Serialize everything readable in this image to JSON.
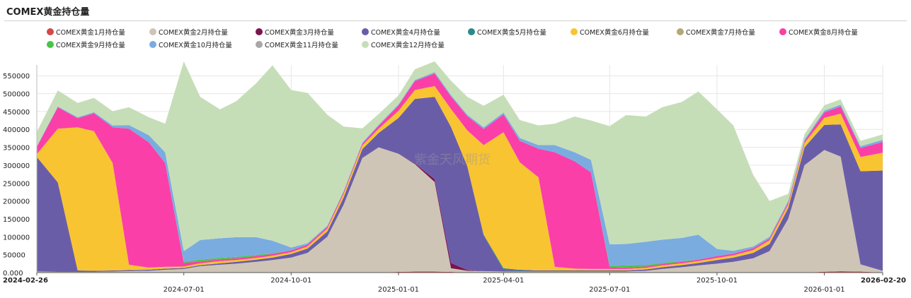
{
  "chart_data": {
    "type": "area",
    "stacked": true,
    "title": "COMEX黄金持仓量",
    "watermark": "紫金天风期货",
    "x": [
      "2024-02-26",
      "2024-03-15",
      "2024-04-01",
      "2024-04-15",
      "2024-05-01",
      "2024-05-15",
      "2024-06-01",
      "2024-06-15",
      "2024-07-01",
      "2024-07-15",
      "2024-08-01",
      "2024-08-15",
      "2024-09-01",
      "2024-09-15",
      "2024-10-01",
      "2024-10-15",
      "2024-11-01",
      "2024-11-15",
      "2024-12-01",
      "2024-12-15",
      "2025-01-01",
      "2025-01-15",
      "2025-02-01",
      "2025-02-15",
      "2025-03-01",
      "2025-03-15",
      "2025-04-01",
      "2025-04-15",
      "2025-05-01",
      "2025-05-15",
      "2025-06-01",
      "2025-06-15",
      "2025-07-01",
      "2025-07-15",
      "2025-08-01",
      "2025-08-15",
      "2025-09-01",
      "2025-09-15",
      "2025-10-01",
      "2025-10-15",
      "2025-11-01",
      "2025-11-15",
      "2025-12-01",
      "2025-12-15",
      "2026-01-01",
      "2026-01-15",
      "2026-02-01",
      "2026-02-20"
    ],
    "series": [
      {
        "name": "COMEX黄金1月持仓量",
        "color": "#d6474a",
        "values": [
          0,
          0,
          0,
          0,
          0,
          0,
          0,
          0,
          0,
          0,
          0,
          0,
          0,
          0,
          0,
          0,
          0,
          0,
          0,
          0,
          2000,
          3000,
          3000,
          2000,
          0,
          0,
          0,
          0,
          0,
          0,
          0,
          0,
          0,
          0,
          0,
          0,
          0,
          0,
          0,
          0,
          0,
          0,
          0,
          0,
          2500,
          4000,
          3000,
          0
        ]
      },
      {
        "name": "COMEX黄金2月持仓量",
        "color": "#cfc5b6",
        "values": [
          3000,
          2000,
          2000,
          2000,
          3000,
          4000,
          5000,
          8000,
          10000,
          18000,
          22000,
          25000,
          30000,
          35000,
          42000,
          55000,
          100000,
          190000,
          320000,
          350000,
          330000,
          300000,
          250000,
          10000,
          5000,
          4000,
          3000,
          3000,
          3000,
          3000,
          3000,
          3000,
          3000,
          3000,
          5000,
          10000,
          15000,
          20000,
          25000,
          30000,
          40000,
          60000,
          150000,
          300000,
          340000,
          320000,
          20000,
          5000
        ]
      },
      {
        "name": "COMEX黄金3月持仓量",
        "color": "#7b1450",
        "values": [
          0,
          0,
          0,
          0,
          0,
          0,
          0,
          0,
          0,
          0,
          0,
          0,
          0,
          0,
          0,
          0,
          0,
          0,
          0,
          0,
          0,
          2000,
          8000,
          15000,
          2000,
          0,
          0,
          0,
          0,
          0,
          0,
          0,
          0,
          0,
          0,
          0,
          0,
          0,
          0,
          0,
          0,
          0,
          0,
          0,
          0,
          0,
          0,
          0
        ]
      },
      {
        "name": "COMEX黄金4月持仓量",
        "color": "#6a5da8",
        "values": [
          320000,
          250000,
          4000,
          3000,
          3000,
          3000,
          3000,
          3000,
          3000,
          3000,
          4000,
          5000,
          6000,
          7000,
          10000,
          12000,
          15000,
          20000,
          25000,
          40000,
          100000,
          180000,
          230000,
          380000,
          290000,
          100000,
          5000,
          3000,
          3000,
          3000,
          3000,
          3000,
          3000,
          3000,
          4000,
          5000,
          6000,
          7000,
          10000,
          12000,
          15000,
          20000,
          30000,
          50000,
          70000,
          90000,
          260000,
          280000
        ]
      },
      {
        "name": "COMEX黄金5月持仓量",
        "color": "#2a8a8a",
        "values": [
          0,
          0,
          0,
          0,
          0,
          0,
          0,
          0,
          0,
          0,
          0,
          0,
          0,
          0,
          0,
          0,
          0,
          0,
          0,
          0,
          0,
          0,
          0,
          0,
          0,
          2000,
          4000,
          2000,
          0,
          0,
          0,
          0,
          0,
          0,
          0,
          0,
          0,
          0,
          0,
          0,
          0,
          0,
          0,
          0,
          0,
          0,
          0,
          0
        ]
      },
      {
        "name": "COMEX黄金6月持仓量",
        "color": "#f9c431",
        "values": [
          8000,
          150000,
          400000,
          390000,
          300000,
          15000,
          6000,
          5000,
          4000,
          5000,
          6000,
          5000,
          5000,
          5000,
          5000,
          6000,
          8000,
          10000,
          10000,
          12000,
          20000,
          25000,
          30000,
          50000,
          100000,
          250000,
          380000,
          300000,
          260000,
          10000,
          5000,
          4000,
          4000,
          4000,
          4000,
          5000,
          5000,
          5000,
          6000,
          6000,
          8000,
          10000,
          10000,
          12000,
          20000,
          30000,
          40000,
          50000
        ]
      },
      {
        "name": "COMEX黄金7月持仓量",
        "color": "#b6a776",
        "values": [
          0,
          0,
          0,
          0,
          0,
          0,
          0,
          0,
          0,
          0,
          0,
          0,
          0,
          0,
          0,
          0,
          0,
          0,
          0,
          0,
          0,
          0,
          0,
          0,
          0,
          0,
          0,
          0,
          0,
          0,
          0,
          0,
          0,
          0,
          0,
          0,
          0,
          0,
          0,
          0,
          0,
          0,
          0,
          0,
          0,
          0,
          0,
          0
        ]
      },
      {
        "name": "COMEX黄金8月持仓量",
        "color": "#fa3fa8",
        "values": [
          20000,
          60000,
          25000,
          50000,
          100000,
          380000,
          350000,
          290000,
          10000,
          5000,
          5000,
          5000,
          5000,
          5000,
          5000,
          5000,
          5000,
          5000,
          5000,
          8000,
          15000,
          25000,
          35000,
          35000,
          40000,
          45000,
          50000,
          60000,
          80000,
          320000,
          300000,
          270000,
          5000,
          4000,
          4000,
          4000,
          4000,
          4000,
          5000,
          5000,
          5000,
          5000,
          5000,
          5000,
          15000,
          20000,
          25000,
          30000
        ]
      },
      {
        "name": "COMEX黄金9月持仓量",
        "color": "#49c449",
        "values": [
          0,
          0,
          0,
          0,
          0,
          0,
          0,
          0,
          3000,
          5000,
          4000,
          4000,
          3000,
          2000,
          0,
          0,
          0,
          0,
          0,
          0,
          0,
          0,
          0,
          0,
          0,
          0,
          0,
          0,
          0,
          0,
          0,
          0,
          4000,
          6000,
          4000,
          3000,
          2000,
          0,
          0,
          0,
          0,
          0,
          0,
          0,
          0,
          0,
          0,
          0
        ]
      },
      {
        "name": "COMEX黄金10月持仓量",
        "color": "#7aace0",
        "values": [
          2000,
          2000,
          3000,
          3000,
          5000,
          10000,
          20000,
          30000,
          30000,
          55000,
          55000,
          55000,
          50000,
          35000,
          8000,
          4000,
          3000,
          3000,
          3000,
          3000,
          3000,
          3000,
          4000,
          4000,
          4000,
          5000,
          5000,
          8000,
          10000,
          20000,
          25000,
          35000,
          60000,
          60000,
          65000,
          65000,
          65000,
          70000,
          20000,
          8000,
          5000,
          5000,
          5000,
          5000,
          5000,
          5000,
          5000,
          6000
        ]
      },
      {
        "name": "COMEX黄金11月持仓量",
        "color": "#a8a8a8",
        "values": [
          0,
          0,
          0,
          0,
          0,
          0,
          0,
          0,
          0,
          0,
          0,
          0,
          0,
          0,
          0,
          0,
          0,
          0,
          0,
          0,
          0,
          0,
          0,
          0,
          0,
          0,
          0,
          0,
          0,
          0,
          0,
          0,
          0,
          0,
          0,
          0,
          0,
          0,
          0,
          0,
          0,
          0,
          0,
          0,
          0,
          0,
          0,
          0
        ]
      },
      {
        "name": "COMEX黄金12月持仓量",
        "color": "#c6deb8",
        "values": [
          40000,
          45000,
          40000,
          40000,
          40000,
          50000,
          50000,
          80000,
          530000,
          400000,
          360000,
          380000,
          430000,
          490000,
          440000,
          420000,
          310000,
          180000,
          40000,
          30000,
          25000,
          30000,
          30000,
          40000,
          50000,
          60000,
          50000,
          50000,
          55000,
          60000,
          100000,
          110000,
          330000,
          360000,
          350000,
          370000,
          380000,
          400000,
          390000,
          350000,
          200000,
          100000,
          20000,
          15000,
          15000,
          15000,
          15000,
          15000
        ]
      }
    ],
    "ylim": [
      0,
      580000
    ],
    "yticks": [
      "0.000",
      "50000",
      "100000",
      "150000",
      "200000",
      "250000",
      "300000",
      "350000",
      "400000",
      "450000",
      "500000",
      "550000"
    ],
    "xticks": [
      {
        "label": "2024-02-26",
        "date": "2024-02-26",
        "bold": true,
        "row": 0
      },
      {
        "label": "2024-07-01",
        "date": "2024-07-01",
        "bold": false,
        "row": 1
      },
      {
        "label": "2024-10-01",
        "date": "2024-10-01",
        "bold": false,
        "row": 0
      },
      {
        "label": "2025-01-01",
        "date": "2025-01-01",
        "bold": false,
        "row": 1
      },
      {
        "label": "2025-04-01",
        "date": "2025-04-01",
        "bold": false,
        "row": 0
      },
      {
        "label": "2025-07-01",
        "date": "2025-07-01",
        "bold": false,
        "row": 1
      },
      {
        "label": "2025-10-01",
        "date": "2025-10-01",
        "bold": false,
        "row": 0
      },
      {
        "label": "2026-01-01",
        "date": "2026-01-01",
        "bold": false,
        "row": 1
      },
      {
        "label": "2026-02-20",
        "date": "2026-02-20",
        "bold": true,
        "row": 0
      }
    ],
    "grid": true,
    "legend_position": "top"
  }
}
